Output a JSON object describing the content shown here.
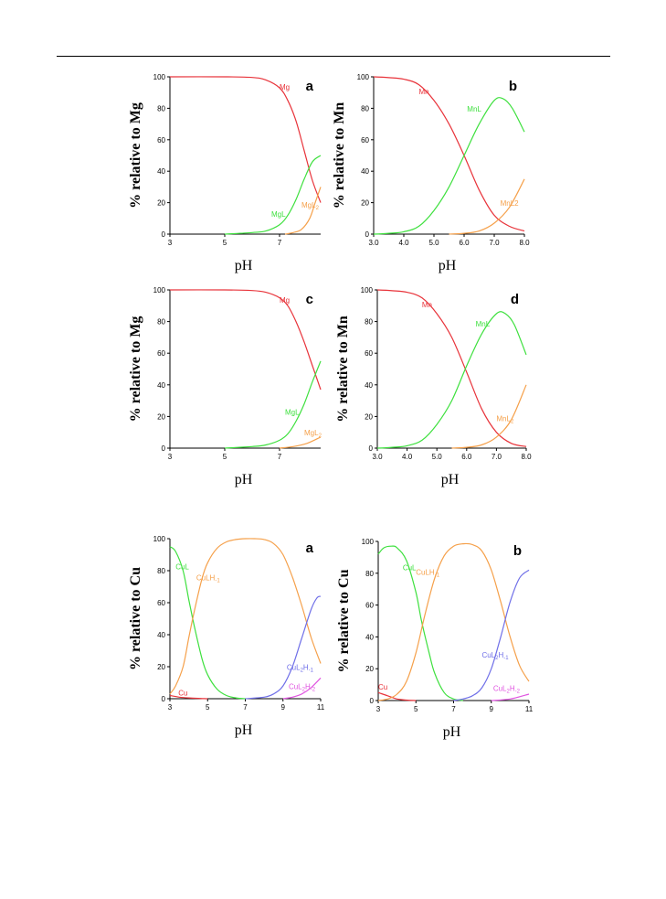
{
  "chart_data": [
    {
      "type": "line",
      "panel_letter": "a",
      "ylabel": "% relative to Mg",
      "xlabel": "pH",
      "xlim": [
        3,
        8.5
      ],
      "ylim": [
        0,
        100
      ],
      "xticks": [
        "3",
        "5",
        "7"
      ],
      "xtick_values": [
        3,
        5,
        7
      ],
      "yticks": [
        "0",
        "20",
        "40",
        "60",
        "80",
        "100"
      ],
      "series": [
        {
          "name": "Mg",
          "color": "#e8333a",
          "x": [
            3,
            5,
            6,
            6.5,
            7,
            7.3,
            7.6,
            7.9,
            8.2,
            8.5
          ],
          "y": [
            100,
            100,
            99.6,
            98,
            93,
            85,
            72,
            53,
            34,
            20
          ]
        },
        {
          "name": "MgL",
          "color": "#3ee03e",
          "x": [
            5,
            6,
            6.5,
            7,
            7.3,
            7.6,
            7.9,
            8.2,
            8.5
          ],
          "y": [
            0,
            1,
            2,
            6,
            12,
            22,
            35,
            46,
            50
          ]
        },
        {
          "name": "MgL2",
          "color": "#f5a04a",
          "x": [
            7.2,
            7.5,
            7.8,
            8.1,
            8.3,
            8.5
          ],
          "y": [
            0,
            1,
            3,
            10,
            20,
            30
          ]
        }
      ],
      "labels": [
        {
          "text": "Mg",
          "series": "Mg",
          "x": 7.0,
          "y": 92
        },
        {
          "text": "MgL",
          "series": "MgL",
          "x": 6.7,
          "y": 11
        },
        {
          "text": "MgL",
          "sub": "2",
          "series": "MgL2",
          "x": 7.8,
          "y": 17
        }
      ]
    },
    {
      "type": "line",
      "panel_letter": "b",
      "ylabel": "% relative to Mn",
      "xlabel": "pH",
      "xlim": [
        3,
        8
      ],
      "ylim": [
        0,
        100
      ],
      "xticks": [
        "3.0",
        "4.0",
        "5.0",
        "6.0",
        "7.0",
        "8.0"
      ],
      "xtick_values": [
        3,
        4,
        5,
        6,
        7,
        8
      ],
      "yticks": [
        "0",
        "20",
        "40",
        "60",
        "80",
        "100"
      ],
      "series": [
        {
          "name": "Mn",
          "color": "#e8333a",
          "x": [
            3,
            3.5,
            4,
            4.5,
            5,
            5.5,
            6,
            6.5,
            7,
            7.5,
            8
          ],
          "y": [
            100,
            99.5,
            98.5,
            95,
            85,
            70,
            50,
            28,
            12,
            5,
            2
          ]
        },
        {
          "name": "MnL",
          "color": "#3ee03e",
          "x": [
            3,
            3.5,
            4,
            4.5,
            5,
            5.5,
            6,
            6.5,
            7,
            7.3,
            7.6,
            8
          ],
          "y": [
            0,
            0.5,
            1.5,
            5,
            15,
            30,
            50,
            70,
            85,
            86,
            80,
            65
          ]
        },
        {
          "name": "MnL2",
          "color": "#f5a04a",
          "x": [
            5.5,
            6,
            6.5,
            7,
            7.5,
            8
          ],
          "y": [
            0,
            0.5,
            2,
            7,
            17,
            35
          ]
        }
      ],
      "labels": [
        {
          "text": "Mn",
          "series": "Mn",
          "x": 4.5,
          "y": 89
        },
        {
          "text": "MnL",
          "series": "MnL",
          "x": 6.1,
          "y": 78
        },
        {
          "text": "MnL2",
          "series": "MnL2",
          "x": 7.2,
          "y": 18
        }
      ]
    },
    {
      "type": "line",
      "panel_letter": "c",
      "ylabel": "% relative to Mg",
      "xlabel": "pH",
      "xlim": [
        3,
        8.5
      ],
      "ylim": [
        0,
        100
      ],
      "xticks": [
        "3",
        "5",
        "7"
      ],
      "xtick_values": [
        3,
        5,
        7
      ],
      "yticks": [
        "0",
        "20",
        "40",
        "60",
        "80",
        "100"
      ],
      "series": [
        {
          "name": "Mg",
          "color": "#e8333a",
          "x": [
            3,
            5,
            6,
            6.5,
            7,
            7.3,
            7.6,
            7.9,
            8.2,
            8.5
          ],
          "y": [
            100,
            100,
            99.6,
            98.5,
            95,
            90,
            80,
            67,
            52,
            37
          ]
        },
        {
          "name": "MgL",
          "color": "#3ee03e",
          "x": [
            5,
            6,
            6.5,
            7,
            7.3,
            7.6,
            7.9,
            8.2,
            8.5
          ],
          "y": [
            0,
            1,
            2,
            5,
            9,
            17,
            28,
            42,
            55
          ]
        },
        {
          "name": "MgL2",
          "color": "#f5a04a",
          "x": [
            7.0,
            7.5,
            8.0,
            8.5
          ],
          "y": [
            0,
            1,
            3,
            7
          ]
        }
      ],
      "labels": [
        {
          "text": "Mg",
          "series": "Mg",
          "x": 7.0,
          "y": 92
        },
        {
          "text": "MgL",
          "series": "MgL",
          "x": 7.2,
          "y": 21
        },
        {
          "text": "MgL",
          "sub": "2",
          "series": "MgL2",
          "x": 7.9,
          "y": 8
        }
      ]
    },
    {
      "type": "line",
      "panel_letter": "d",
      "ylabel": "% relative to Mn",
      "xlabel": "pH",
      "xlim": [
        3,
        8
      ],
      "ylim": [
        0,
        100
      ],
      "xticks": [
        "3.0",
        "4.0",
        "5.0",
        "6.0",
        "7.0",
        "8.0"
      ],
      "xtick_values": [
        3,
        4,
        5,
        6,
        7,
        8
      ],
      "yticks": [
        "0",
        "20",
        "40",
        "60",
        "80",
        "100"
      ],
      "series": [
        {
          "name": "Mn",
          "color": "#e8333a",
          "x": [
            3,
            3.5,
            4,
            4.5,
            5,
            5.5,
            6,
            6.5,
            7,
            7.5,
            8
          ],
          "y": [
            100,
            99.5,
            98.5,
            95,
            85,
            70,
            48,
            25,
            10,
            3,
            1
          ]
        },
        {
          "name": "MnL",
          "color": "#3ee03e",
          "x": [
            3,
            3.5,
            4,
            4.5,
            5,
            5.5,
            6,
            6.5,
            7,
            7.3,
            7.6,
            8
          ],
          "y": [
            0,
            0.5,
            1.5,
            5,
            15,
            30,
            52,
            72,
            85,
            85,
            78,
            59
          ]
        },
        {
          "name": "MnL2",
          "color": "#f5a04a",
          "x": [
            5.5,
            6,
            6.5,
            7,
            7.5,
            8
          ],
          "y": [
            0,
            0.5,
            2,
            7,
            18,
            40
          ]
        }
      ],
      "labels": [
        {
          "text": "Mn",
          "series": "Mn",
          "x": 4.5,
          "y": 89
        },
        {
          "text": "MnL",
          "series": "MnL",
          "x": 6.3,
          "y": 77
        },
        {
          "text": "MnL",
          "sub": "2",
          "series": "MnL2",
          "x": 7.0,
          "y": 17
        }
      ]
    },
    {
      "type": "line",
      "panel_letter": "a",
      "ylabel": "% relative to Cu",
      "xlabel": "pH",
      "xlim": [
        3,
        11
      ],
      "ylim": [
        0,
        100
      ],
      "xticks": [
        "3",
        "5",
        "7",
        "9",
        "11"
      ],
      "xtick_values": [
        3,
        5,
        7,
        9,
        11
      ],
      "yticks": [
        "0",
        "20",
        "40",
        "60",
        "80",
        "100"
      ],
      "series": [
        {
          "name": "Cu",
          "color": "#e8333a",
          "x": [
            3,
            3.5,
            4,
            4.5,
            5
          ],
          "y": [
            2,
            1,
            0.5,
            0.2,
            0
          ]
        },
        {
          "name": "CuL",
          "color": "#3ee03e",
          "x": [
            3,
            3.3,
            3.7,
            4,
            4.3,
            4.7,
            5,
            5.5,
            6,
            6.5,
            7
          ],
          "y": [
            95,
            92,
            80,
            62,
            45,
            25,
            15,
            6,
            2,
            0.5,
            0
          ]
        },
        {
          "name": "CuLH-1",
          "color": "#f5a04a",
          "x": [
            3,
            3.3,
            3.7,
            4,
            4.3,
            4.7,
            5,
            5.5,
            6,
            6.5,
            7,
            7.5,
            8,
            8.5,
            9,
            9.5,
            10,
            10.5,
            11
          ],
          "y": [
            3,
            8,
            20,
            38,
            55,
            75,
            85,
            94,
            98,
            99.5,
            100,
            100,
            99.5,
            97,
            90,
            76,
            58,
            38,
            22
          ]
        },
        {
          "name": "CuL2H-1",
          "color": "#6f6fe8",
          "x": [
            7,
            8,
            8.5,
            9,
            9.5,
            10,
            10.5,
            10.8,
            11
          ],
          "y": [
            0,
            1,
            3,
            8,
            20,
            38,
            56,
            63,
            64
          ]
        },
        {
          "name": "CuL2H-2",
          "color": "#e055e0",
          "x": [
            9,
            9.5,
            10,
            10.5,
            11
          ],
          "y": [
            0,
            1,
            3,
            7,
            13
          ]
        }
      ],
      "labels": [
        {
          "text": "Cu",
          "series": "Cu",
          "x": 3.45,
          "y": 2
        },
        {
          "text": "CuL",
          "series": "CuL",
          "x": 3.3,
          "y": 81
        },
        {
          "text": "CuLH",
          "sub": "-1",
          "series": "CuLH-1",
          "x": 4.4,
          "y": 74
        },
        {
          "text": "CuL",
          "sub": "2",
          "text2": "H",
          "sub2": "-1",
          "series": "CuL2H-1",
          "x": 9.2,
          "y": 18
        },
        {
          "text": "CuL",
          "sub": "2",
          "text2": "H",
          "sub2": "-2",
          "series": "CuL2H-2",
          "x": 9.3,
          "y": 6
        }
      ]
    },
    {
      "type": "line",
      "panel_letter": "b",
      "ylabel": "% relative to Cu",
      "xlabel": "pH",
      "xlim": [
        3,
        11
      ],
      "ylim": [
        0,
        100
      ],
      "xticks": [
        "3",
        "5",
        "7",
        "9",
        "11"
      ],
      "xtick_values": [
        3,
        5,
        7,
        9,
        11
      ],
      "yticks": [
        "0",
        "20",
        "40",
        "60",
        "80",
        "100"
      ],
      "series": [
        {
          "name": "Cu",
          "color": "#e8333a",
          "x": [
            3,
            3.5,
            4,
            4.5,
            5
          ],
          "y": [
            5,
            3,
            1,
            0.3,
            0
          ]
        },
        {
          "name": "CuL",
          "color": "#3ee03e",
          "x": [
            3,
            3.3,
            3.7,
            4,
            4.5,
            5,
            5.3,
            5.7,
            6,
            6.5,
            7,
            7.5
          ],
          "y": [
            92,
            96,
            97,
            96,
            88,
            68,
            50,
            30,
            17,
            5,
            1,
            0
          ]
        },
        {
          "name": "CuLH-1",
          "color": "#f5a04a",
          "x": [
            3,
            3.5,
            4,
            4.5,
            5,
            5.5,
            6,
            6.5,
            7,
            7.5,
            8,
            8.5,
            9,
            9.5,
            10,
            10.5,
            11
          ],
          "y": [
            0,
            1,
            4,
            12,
            30,
            55,
            77,
            91,
            97,
            98.5,
            98,
            94,
            82,
            62,
            40,
            22,
            12
          ]
        },
        {
          "name": "CuL2H-1",
          "color": "#6f6fe8",
          "x": [
            7,
            7.5,
            8,
            8.5,
            9,
            9.5,
            10,
            10.5,
            11
          ],
          "y": [
            0,
            1,
            3,
            8,
            20,
            40,
            62,
            77,
            82
          ]
        },
        {
          "name": "CuL2H-2",
          "color": "#e055e0",
          "x": [
            9,
            10,
            11
          ],
          "y": [
            0,
            1,
            4
          ]
        }
      ],
      "labels": [
        {
          "text": "Cu",
          "series": "Cu",
          "x": 3.0,
          "y": 7
        },
        {
          "text": "CuL",
          "series": "CuL",
          "x": 4.3,
          "y": 82
        },
        {
          "text": "CuLH",
          "sub": "-1",
          "series": "CuLH-1",
          "x": 5.0,
          "y": 79
        },
        {
          "text": "CuL",
          "sub": "2",
          "text2": "H",
          "sub2": "-1",
          "series": "CuL2H-1",
          "x": 8.5,
          "y": 27
        },
        {
          "text": "CuL",
          "sub": "2",
          "text2": "H",
          "sub2": "-2",
          "series": "CuL2H-2",
          "x": 9.1,
          "y": 6
        }
      ]
    }
  ]
}
